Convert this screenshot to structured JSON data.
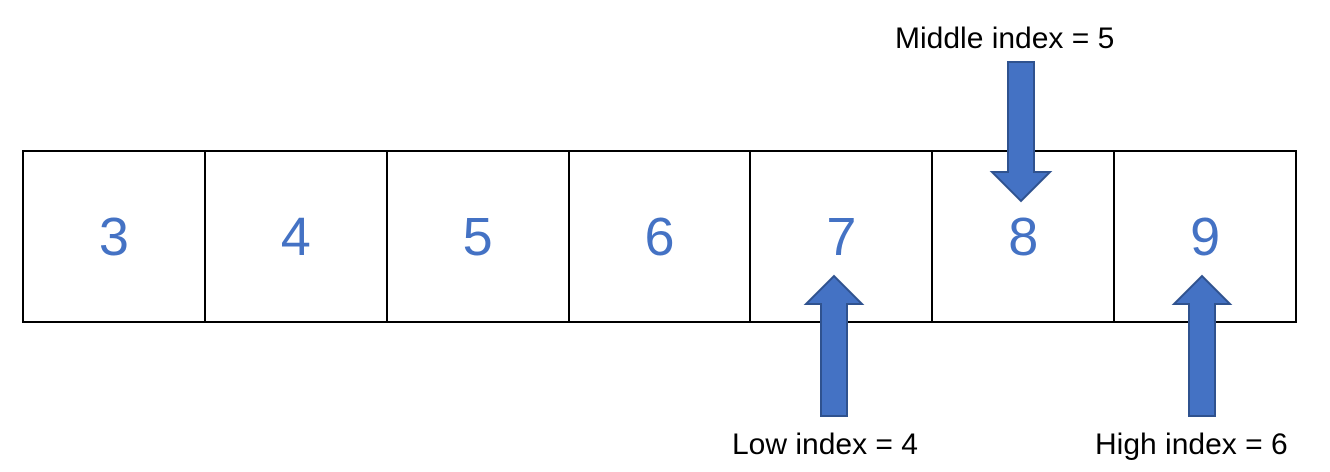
{
  "array": {
    "values": [
      "3",
      "4",
      "5",
      "6",
      "7",
      "8",
      "9"
    ]
  },
  "pointers": {
    "middle": "Middle index = 5",
    "low": "Low index = 4",
    "high": "High index = 6"
  },
  "colors": {
    "value_text": "#4472C4",
    "arrow_fill": "#4472C4",
    "arrow_stroke": "#2F528F",
    "cell_border": "#000000"
  }
}
